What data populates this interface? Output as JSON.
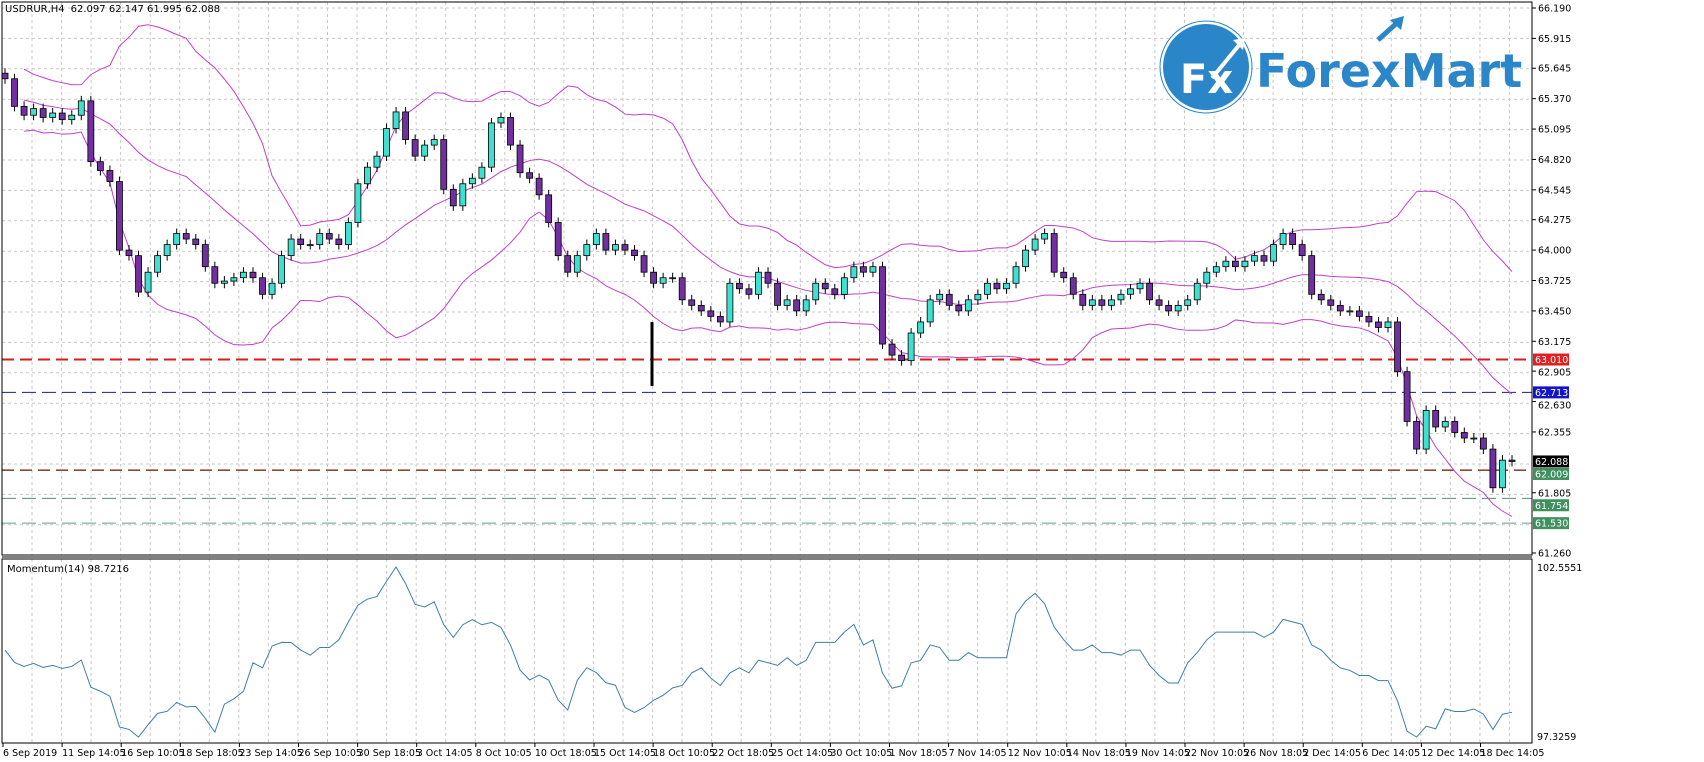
{
  "header": {
    "symbol": "USDRUR,H4",
    "ohlc_text": "62.097 62.147 61.995 62.088"
  },
  "logo": {
    "text": "ForexMart",
    "badge": "Fx",
    "color": "#2b86c9"
  },
  "chart_data": {
    "type": "candlestick",
    "symbol": "USDRUR",
    "timeframe": "H4",
    "indicators": [
      "Bollinger Bands",
      "Momentum(14)"
    ],
    "colors": {
      "bull": "#40e0d0",
      "bear": "#7030a0",
      "bands": "#c040c8",
      "momentum": "#3f7fa8",
      "grid": "#c8c8c8"
    },
    "ylim": [
      61.26,
      66.19
    ],
    "y_ticks": [
      "66.190",
      "65.915",
      "65.645",
      "65.370",
      "65.095",
      "64.820",
      "64.545",
      "64.275",
      "64.000",
      "63.725",
      "63.450",
      "63.175",
      "62.905",
      "62.630",
      "62.355",
      "61.805",
      "61.260"
    ],
    "x_ticks": [
      "6 Sep 2019",
      "11 Sep 14:05",
      "16 Sep 10:05",
      "18 Sep 18:05",
      "23 Sep 14:05",
      "26 Sep 10:05",
      "30 Sep 18:05",
      "3 Oct 14:05",
      "8 Oct 10:05",
      "10 Oct 18:05",
      "15 Oct 14:05",
      "18 Oct 10:05",
      "22 Oct 18:05",
      "25 Oct 14:05",
      "30 Oct 10:05",
      "1 Nov 18:05",
      "7 Nov 14:05",
      "12 Nov 10:05",
      "14 Nov 18:05",
      "19 Nov 14:05",
      "22 Nov 10:05",
      "26 Nov 18:05",
      "2 Dec 14:05",
      "6 Dec 14:05",
      "12 Dec 14:05",
      "18 Dec 14:05"
    ],
    "close": [
      65.55,
      65.3,
      65.22,
      65.28,
      65.2,
      65.24,
      65.18,
      65.22,
      65.35,
      64.8,
      64.72,
      64.62,
      64.0,
      63.95,
      63.62,
      63.8,
      63.95,
      64.05,
      64.15,
      64.1,
      64.05,
      63.85,
      63.7,
      63.72,
      63.75,
      63.8,
      63.75,
      63.6,
      63.7,
      63.95,
      64.1,
      64.05,
      64.05,
      64.15,
      64.1,
      64.05,
      64.25,
      64.6,
      64.75,
      64.85,
      65.1,
      65.25,
      65.0,
      64.85,
      64.95,
      65.0,
      64.55,
      64.4,
      64.6,
      64.65,
      64.75,
      65.15,
      65.2,
      64.95,
      64.7,
      64.65,
      64.5,
      64.25,
      63.95,
      63.8,
      63.95,
      64.05,
      64.15,
      64.0,
      64.05,
      64.0,
      63.95,
      63.8,
      63.7,
      63.75,
      63.75,
      63.55,
      63.5,
      63.45,
      63.4,
      63.35,
      63.7,
      63.65,
      63.6,
      63.8,
      63.7,
      63.5,
      63.55,
      63.45,
      63.55,
      63.7,
      63.65,
      63.6,
      63.75,
      63.85,
      63.8,
      63.85,
      63.15,
      63.05,
      63.0,
      63.25,
      63.35,
      63.55,
      63.6,
      63.5,
      63.45,
      63.55,
      63.6,
      63.7,
      63.65,
      63.7,
      63.85,
      64.0,
      64.1,
      64.15,
      63.8,
      63.75,
      63.6,
      63.5,
      63.55,
      63.5,
      63.55,
      63.6,
      63.65,
      63.7,
      63.55,
      63.5,
      63.45,
      63.5,
      63.55,
      63.7,
      63.8,
      63.85,
      63.9,
      63.85,
      63.9,
      63.95,
      63.9,
      64.05,
      64.15,
      64.05,
      63.95,
      63.6,
      63.55,
      63.5,
      63.45,
      63.45,
      63.4,
      63.35,
      63.3,
      63.35,
      62.9,
      62.45,
      62.2,
      62.55,
      62.4,
      62.45,
      62.35,
      62.3,
      62.3,
      62.2,
      61.85,
      62.1,
      62.088
    ],
    "levels": [
      {
        "price": "63.010",
        "color": "#d81b1b",
        "label_bg": "#e02020"
      },
      {
        "price": "62.713",
        "color": "#1c1c8a",
        "label_bg": "#1414c8"
      },
      {
        "price": "62.009",
        "color": "#8a4a3c",
        "label_bg": "#3f8f5f"
      },
      {
        "price": "61.754",
        "color": "#5b8a78",
        "label_bg": "#3f8f5f"
      },
      {
        "price": "61.530",
        "color": "#6a9a9a",
        "label_bg": "#3f8f5f"
      }
    ],
    "current_price": {
      "price": "62.088",
      "label_bg": "#000000"
    },
    "momentum": {
      "label": "Momentum(14) 98.7216",
      "period": 14,
      "ylim": [
        97.3259,
        102.5551
      ],
      "y_ticks": [
        "102.5551",
        "97.3259"
      ]
    }
  }
}
